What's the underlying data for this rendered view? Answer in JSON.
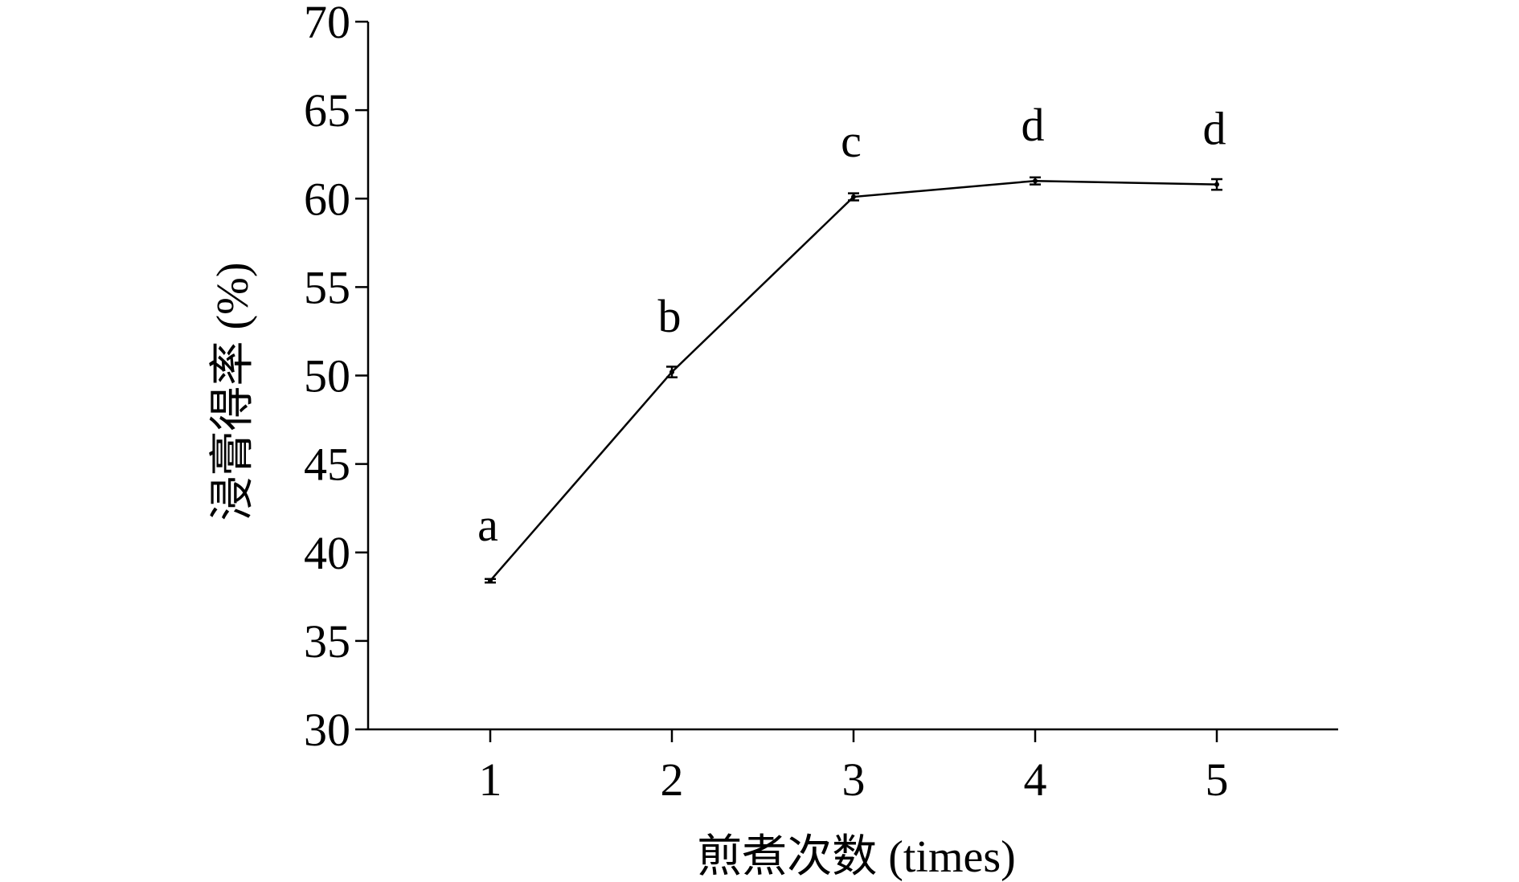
{
  "chart_data": {
    "type": "line",
    "title": "",
    "xlabel": "煎煮次数 (times)",
    "ylabel": "浸膏得率 (%)",
    "x": [
      1,
      2,
      3,
      4,
      5
    ],
    "series": [
      {
        "values": [
          38.4,
          50.2,
          60.1,
          61.0,
          60.8
        ],
        "errors": [
          0.1,
          0.3,
          0.2,
          0.2,
          0.3
        ],
        "letters": [
          "a",
          "b",
          "c",
          "d",
          "d"
        ]
      }
    ],
    "xticks": [
      "1",
      "2",
      "3",
      "4",
      "5"
    ],
    "yticks": [
      "30",
      "35",
      "40",
      "45",
      "50",
      "55",
      "60",
      "65",
      "70"
    ],
    "ylim": [
      30,
      70
    ],
    "grid": false,
    "legend": "none"
  }
}
